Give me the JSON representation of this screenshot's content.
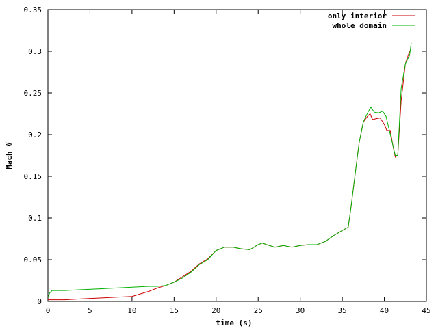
{
  "chart_data": {
    "type": "line",
    "title": "",
    "xlabel": "time (s)",
    "ylabel": "Mach #",
    "xlim": [
      0,
      45
    ],
    "ylim": [
      0,
      0.35
    ],
    "xticks": [
      0,
      5,
      10,
      15,
      20,
      25,
      30,
      35,
      40,
      45
    ],
    "yticks": [
      0,
      0.05,
      0.1,
      0.15,
      0.2,
      0.25,
      0.3,
      0.35
    ],
    "xtick_labels": [
      "0",
      "5",
      "10",
      "15",
      "20",
      "25",
      "30",
      "35",
      "40",
      "45"
    ],
    "ytick_labels": [
      "0",
      "0.05",
      "0.1",
      "0.15",
      "0.2",
      "0.25",
      "0.3",
      "0.35"
    ],
    "grid": false,
    "legend_position": "top-right",
    "series": [
      {
        "name": "only interior",
        "color": "#cc0000",
        "x": [
          0,
          2,
          4,
          6,
          8,
          10,
          11,
          12,
          13,
          14,
          15,
          17,
          18,
          19,
          20,
          21,
          22,
          23,
          24,
          25,
          25.5,
          26,
          27,
          28,
          29,
          30,
          31,
          32,
          33,
          34,
          35,
          35.7,
          36,
          36.5,
          37,
          37.5,
          38,
          38.3,
          38.6,
          39,
          39.5,
          40,
          40.3,
          40.7,
          41,
          41.3,
          41.6,
          42,
          42.5,
          43,
          43.2
        ],
        "y": [
          0.002,
          0.002,
          0.003,
          0.004,
          0.005,
          0.006,
          0.009,
          0.012,
          0.016,
          0.019,
          0.023,
          0.036,
          0.045,
          0.051,
          0.061,
          0.065,
          0.065,
          0.063,
          0.062,
          0.068,
          0.07,
          0.068,
          0.065,
          0.067,
          0.065,
          0.067,
          0.068,
          0.068,
          0.072,
          0.079,
          0.085,
          0.089,
          0.11,
          0.15,
          0.19,
          0.215,
          0.222,
          0.225,
          0.218,
          0.219,
          0.22,
          0.212,
          0.205,
          0.205,
          0.188,
          0.173,
          0.175,
          0.24,
          0.285,
          0.3,
          0.302
        ]
      },
      {
        "name": "whole domain",
        "color": "#00b000",
        "x": [
          0,
          0.2,
          0.5,
          2,
          4,
          6,
          8,
          10,
          12,
          13,
          14,
          15,
          16,
          17,
          18,
          19,
          20,
          21,
          22,
          23,
          24,
          25,
          25.5,
          26,
          27,
          28,
          29,
          30,
          31,
          32,
          33,
          34,
          35,
          35.7,
          36,
          36.5,
          37,
          37.5,
          38,
          38.4,
          38.8,
          39.3,
          39.8,
          40.2,
          40.6,
          41,
          41.3,
          41.6,
          42,
          42.5,
          43,
          43.2
        ],
        "y": [
          0.005,
          0.01,
          0.013,
          0.013,
          0.014,
          0.015,
          0.016,
          0.017,
          0.018,
          0.018,
          0.019,
          0.023,
          0.028,
          0.035,
          0.044,
          0.05,
          0.061,
          0.065,
          0.065,
          0.063,
          0.062,
          0.068,
          0.07,
          0.068,
          0.065,
          0.067,
          0.065,
          0.067,
          0.068,
          0.068,
          0.072,
          0.079,
          0.085,
          0.089,
          0.11,
          0.15,
          0.19,
          0.215,
          0.226,
          0.233,
          0.227,
          0.226,
          0.228,
          0.222,
          0.205,
          0.188,
          0.175,
          0.175,
          0.255,
          0.285,
          0.295,
          0.31
        ]
      }
    ]
  }
}
